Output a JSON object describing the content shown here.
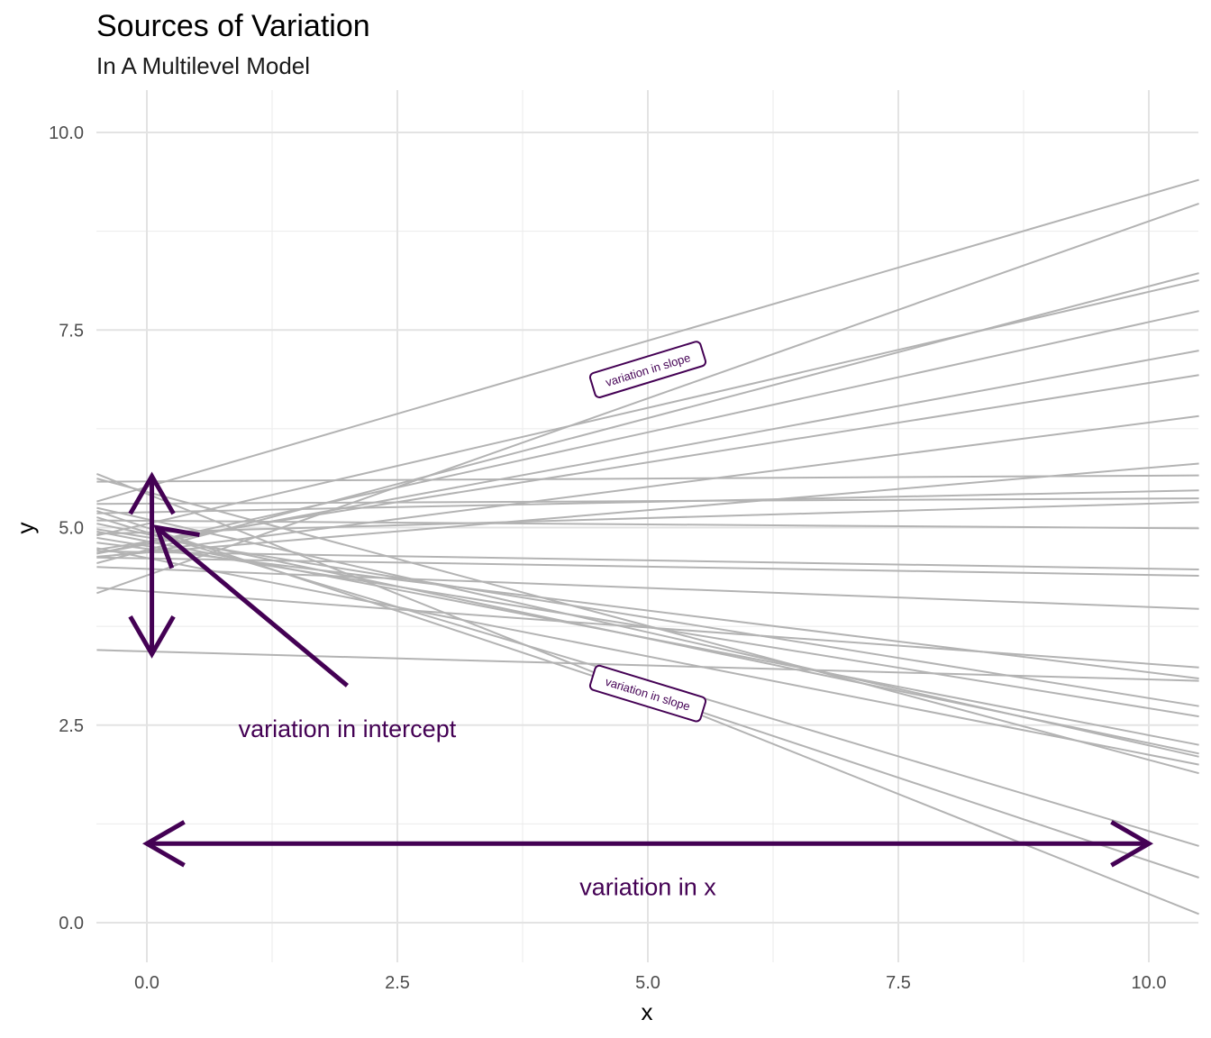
{
  "chart_data": {
    "type": "line",
    "title": "Sources of Variation",
    "subtitle": "In A Multilevel Model",
    "xlabel": "x",
    "ylabel": "y",
    "xlim": [
      -0.5,
      10.5
    ],
    "ylim": [
      -0.5,
      10.5
    ],
    "x_ticks": [
      "0.0",
      "2.5",
      "5.0",
      "7.5",
      "10.0"
    ],
    "y_ticks": [
      "0.0",
      "2.5",
      "5.0",
      "7.5",
      "10.0"
    ],
    "grid": true,
    "line_color": "#b3b3b3",
    "accent_color": "#440154",
    "series": [
      {
        "values": [
          [
            -0.5,
            5.33
          ],
          [
            10.5,
            9.4
          ]
        ]
      },
      {
        "values": [
          [
            -0.5,
            4.17
          ],
          [
            10.5,
            9.1
          ]
        ]
      },
      {
        "values": [
          [
            -0.5,
            4.55
          ],
          [
            10.5,
            8.22
          ]
        ]
      },
      {
        "values": [
          [
            -0.5,
            4.9
          ],
          [
            10.5,
            8.13
          ]
        ]
      },
      {
        "values": [
          [
            -0.5,
            4.67
          ],
          [
            10.5,
            7.74
          ]
        ]
      },
      {
        "values": [
          [
            -0.5,
            4.67
          ],
          [
            10.5,
            7.24
          ]
        ]
      },
      {
        "values": [
          [
            -0.5,
            4.72
          ],
          [
            10.5,
            6.93
          ]
        ]
      },
      {
        "values": [
          [
            -0.5,
            4.62
          ],
          [
            10.5,
            6.41
          ]
        ]
      },
      {
        "values": [
          [
            -0.5,
            4.63
          ],
          [
            10.5,
            5.81
          ]
        ]
      },
      {
        "values": [
          [
            -0.5,
            5.58
          ],
          [
            10.5,
            5.66
          ]
        ]
      },
      {
        "values": [
          [
            -0.5,
            5.18
          ],
          [
            10.5,
            5.47
          ]
        ]
      },
      {
        "values": [
          [
            -0.5,
            5.3
          ],
          [
            10.5,
            5.37
          ]
        ]
      },
      {
        "values": [
          [
            -0.5,
            4.92
          ],
          [
            10.5,
            5.32
          ]
        ]
      },
      {
        "values": [
          [
            -0.5,
            5.09
          ],
          [
            10.5,
            4.99
          ]
        ]
      },
      {
        "values": [
          [
            -0.5,
            4.7
          ],
          [
            10.5,
            4.47
          ]
        ]
      },
      {
        "values": [
          [
            -0.5,
            4.62
          ],
          [
            10.5,
            4.39
          ]
        ]
      },
      {
        "values": [
          [
            -0.5,
            4.5
          ],
          [
            10.5,
            3.97
          ]
        ]
      },
      {
        "values": [
          [
            -0.5,
            4.24
          ],
          [
            10.5,
            3.23
          ]
        ]
      },
      {
        "values": [
          [
            -0.5,
            4.81
          ],
          [
            10.5,
            3.09
          ]
        ]
      },
      {
        "values": [
          [
            -0.5,
            3.45
          ],
          [
            10.5,
            3.06
          ]
        ]
      },
      {
        "values": [
          [
            -0.5,
            4.98
          ],
          [
            10.5,
            2.74
          ]
        ]
      },
      {
        "values": [
          [
            -0.5,
            4.87
          ],
          [
            10.5,
            2.61
          ]
        ]
      },
      {
        "values": [
          [
            -0.5,
            4.95
          ],
          [
            10.5,
            2.25
          ]
        ]
      },
      {
        "values": [
          [
            -0.5,
            5.05
          ],
          [
            10.5,
            2.14
          ]
        ]
      },
      {
        "values": [
          [
            -0.5,
            5.25
          ],
          [
            10.5,
            2.1
          ]
        ]
      },
      {
        "values": [
          [
            -0.5,
            4.74
          ],
          [
            10.5,
            2.0
          ]
        ]
      },
      {
        "values": [
          [
            -0.5,
            5.62
          ],
          [
            10.5,
            1.89
          ]
        ]
      },
      {
        "values": [
          [
            -0.5,
            5.13
          ],
          [
            10.5,
            0.97
          ]
        ]
      },
      {
        "values": [
          [
            -0.5,
            5.21
          ],
          [
            10.5,
            0.57
          ]
        ]
      },
      {
        "values": [
          [
            -0.5,
            5.68
          ],
          [
            10.5,
            0.11
          ]
        ]
      }
    ],
    "annotations": [
      {
        "text": "variation in intercept",
        "x": 2.0,
        "y": 2.45
      },
      {
        "text": "variation in x",
        "x": 5.0,
        "y": 0.45
      },
      {
        "text": "variation in slope",
        "x": 5.0,
        "y": 7.0,
        "boxed": true,
        "angle": -17
      },
      {
        "text": "variation in slope",
        "x": 5.0,
        "y": 2.9,
        "boxed": true,
        "angle": 17
      }
    ],
    "arrows": [
      {
        "name": "intercept-range-arrow",
        "from": [
          0.05,
          3.4
        ],
        "to": [
          0.05,
          5.65
        ],
        "double": true
      },
      {
        "name": "intercept-pointer-arrow",
        "from": [
          2.0,
          3.0
        ],
        "to": [
          0.1,
          5.0
        ],
        "double": false
      },
      {
        "name": "x-range-arrow",
        "from": [
          0.0,
          1.0
        ],
        "to": [
          10.0,
          1.0
        ],
        "double": true
      }
    ]
  }
}
